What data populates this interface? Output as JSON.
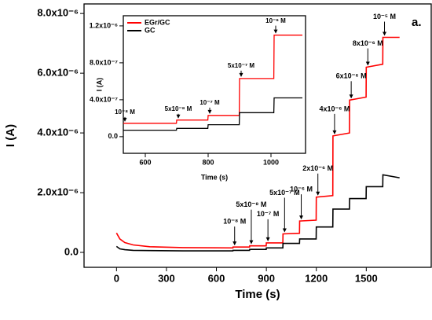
{
  "chart_data": [
    {
      "type": "line",
      "x_label": "Time (s)",
      "y_label": "I (A)",
      "panel_label": "a.",
      "x": [
        0,
        20,
        50,
        100,
        200,
        400,
        699,
        700,
        799,
        800,
        899,
        900,
        999,
        1000,
        1099,
        1100,
        1199,
        1200,
        1299,
        1300,
        1399,
        1400,
        1499,
        1500,
        1599,
        1600,
        1700
      ],
      "series": [
        {
          "color": "#ff0000",
          "values": [
            6.5e-07,
            4.5e-07,
            3.3e-07,
            2.5e-07,
            1.9e-07,
            1.6e-07,
            1.5e-07,
            1.8e-07,
            1.8e-07,
            2.2e-07,
            2.2e-07,
            3.2e-07,
            3.2e-07,
            6.2e-07,
            6.4e-07,
            1.05e-06,
            1.08e-06,
            1.85e-06,
            1.9e-06,
            3.9e-06,
            4e-06,
            5.1e-06,
            5.2e-06,
            6.2e-06,
            6.3e-06,
            7.2e-06,
            7.2e-06
          ]
        },
        {
          "color": "#000000",
          "values": [
            2e-07,
            1.2e-07,
            9e-08,
            7e-08,
            6e-08,
            5e-08,
            5e-08,
            7e-08,
            7e-08,
            1e-07,
            1e-07,
            1.5e-07,
            1.5e-07,
            3e-07,
            3e-07,
            4.5e-07,
            4.5e-07,
            8.5e-07,
            8.5e-07,
            1.45e-06,
            1.45e-06,
            1.8e-06,
            1.8e-06,
            2.2e-06,
            2.2e-06,
            2.6e-06,
            2.5e-06
          ]
        }
      ],
      "annotations": [
        "10⁻⁸ M",
        "5x10⁻⁸ M",
        "10⁻⁷ M",
        "5x10⁻⁷ M",
        "10⁻⁶ M",
        "2x10⁻⁶ M",
        "4x10⁻⁶ M",
        "6x10⁻⁶ M",
        "8x10⁻⁶ M",
        "10⁻⁵ M"
      ],
      "xlim": [
        -195,
        1890
      ],
      "xticks": [
        0,
        300,
        600,
        900,
        1200,
        1500
      ],
      "ylim": [
        -5e-07,
        8.32e-06
      ],
      "yticks": [
        {
          "value": 0,
          "label": "0.0"
        },
        {
          "value": 2e-06,
          "label": "2.0x10⁻⁶"
        },
        {
          "value": 4e-06,
          "label": "4.0x10⁻⁶"
        },
        {
          "value": 6e-06,
          "label": "6.0x10⁻⁶"
        },
        {
          "value": 8e-06,
          "label": "8.0x10⁻⁶"
        }
      ]
    },
    {
      "type": "line",
      "x_label": "Time (s)",
      "y_label": "I (A)",
      "x": [
        530,
        699,
        700,
        799,
        800,
        899,
        900,
        1009,
        1010,
        1100
      ],
      "series": [
        {
          "name": "EGr/GC",
          "color": "#ff0000",
          "values": [
            1.45e-07,
            1.45e-07,
            1.8e-07,
            1.8e-07,
            2.3e-07,
            2.3e-07,
            6.3e-07,
            6.3e-07,
            1.1e-06,
            1.1e-06
          ]
        },
        {
          "name": "GC",
          "color": "#000000",
          "values": [
            7e-08,
            7e-08,
            9e-08,
            9e-08,
            1.3e-07,
            1.3e-07,
            2.6e-07,
            2.6e-07,
            4.2e-07,
            4.2e-07
          ]
        }
      ],
      "annotations": [
        "10⁻⁸ M",
        "5x10⁻⁸ M",
        "10⁻⁷ M",
        "5x10⁻⁷ M",
        "10⁻⁶ M"
      ],
      "legend": "upper left",
      "xlim": [
        530,
        1110
      ],
      "xticks": [
        600,
        800,
        1000
      ],
      "ylim": [
        -1.8e-07,
        1.31e-06
      ],
      "yticks": [
        {
          "value": 0,
          "label": "0.0"
        },
        {
          "value": 4e-07,
          "label": "4.0x10⁻⁷"
        },
        {
          "value": 8e-07,
          "label": "8.0x10⁻⁷"
        },
        {
          "value": 1.2e-06,
          "label": "1.2x10⁻⁶"
        }
      ]
    }
  ]
}
